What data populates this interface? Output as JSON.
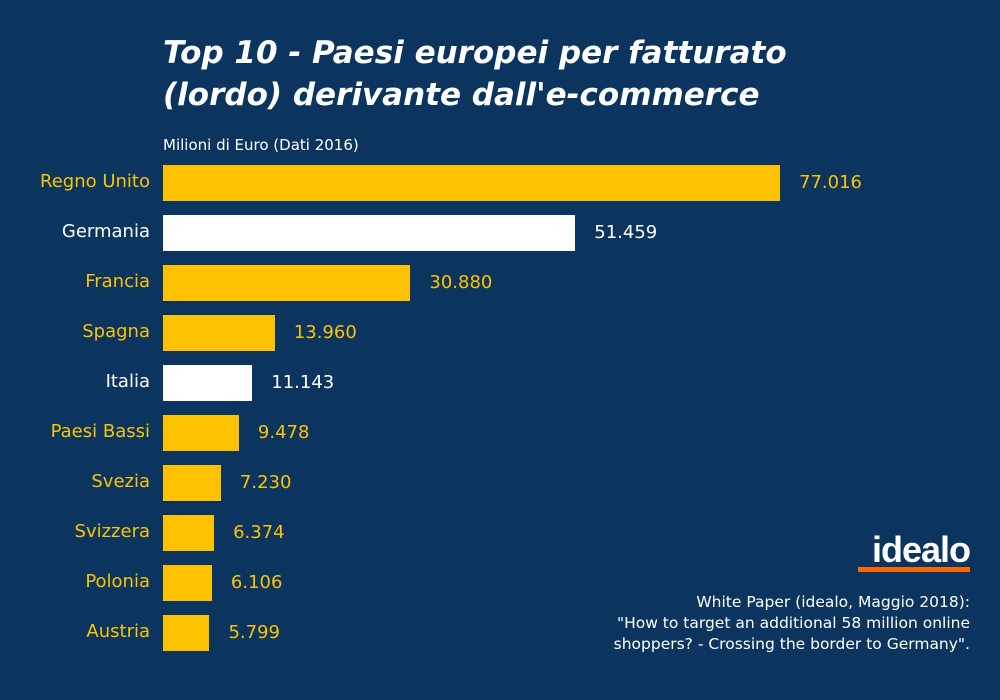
{
  "chart_data": {
    "type": "bar",
    "orientation": "horizontal",
    "title": "Top 10 - Paesi europei per fatturato (lordo) derivante dall'e-commerce",
    "title_lines": [
      "Top 10 - Paesi europei per fatturato",
      "(lordo) derivante dall'e-commerce"
    ],
    "unit_label": "Milioni di Euro (Dati 2016)",
    "categories": [
      "Regno Unito",
      "Germania",
      "Francia",
      "Spagna",
      "Italia",
      "Paesi Bassi",
      "Svezia",
      "Svizzera",
      "Polonia",
      "Austria"
    ],
    "values": [
      77016,
      51459,
      30880,
      13960,
      11143,
      9478,
      7230,
      6374,
      6106,
      5799
    ],
    "value_labels": [
      "77.016",
      "51.459",
      "30.880",
      "13.960",
      "11.143",
      "9.478",
      "7.230",
      "6.374",
      "6.106",
      "5.799"
    ],
    "highlighted": [
      "Germania",
      "Italia"
    ],
    "colors": {
      "default": "#fdc300",
      "highlight": "#ffffff",
      "background": "#0b355f"
    }
  },
  "logo": {
    "text": "idealo",
    "underline_color": "#ff6600"
  },
  "source": [
    "White Paper (idealo, Maggio 2018):",
    "\"How to target an additional 58 million online",
    "shoppers? - Crossing the border to Germany\"."
  ]
}
